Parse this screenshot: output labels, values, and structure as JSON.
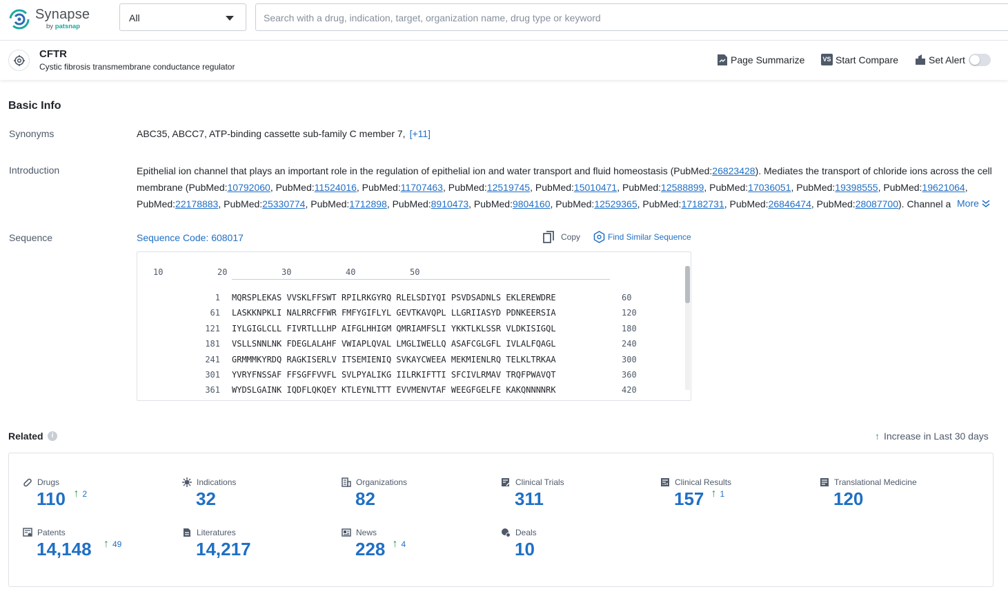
{
  "app": {
    "name": "Synapse",
    "by_prefix": "by",
    "by_brand": "patsnap"
  },
  "search": {
    "scope_value": "All",
    "placeholder": "Search with a drug, indication, target, organization name, drug type or keyword"
  },
  "target": {
    "symbol": "CFTR",
    "full_name": "Cystic fibrosis transmembrane conductance regulator"
  },
  "header_actions": {
    "page_summarize": "Page Summarize",
    "start_compare": "Start Compare",
    "compare_icon_text": "VS",
    "set_alert": "Set Alert"
  },
  "basic_info": {
    "title": "Basic Info",
    "synonyms_label": "Synonyms",
    "synonyms": "ABC35,  ABCC7,  ATP-binding cassette sub-family C member 7,",
    "synonyms_more": "[+11]",
    "introduction_label": "Introduction",
    "intro": {
      "lead": "Epithelial ion channel that plays an important role in the regulation of epithelial ion and water transport and fluid homeostasis (PubMed:",
      "pm1": "26823428",
      "mid": "). Mediates the transport of chloride ions across the cell membrane (PubMed:",
      "pmids": [
        "10792060",
        "11524016",
        "11707463",
        "12519745",
        "15010471",
        "12588899",
        "17036051",
        "19398555",
        "19621064",
        "22178883",
        "25330774",
        "1712898",
        "8910473",
        "9804160",
        "12529365",
        "17182731",
        "26846474",
        "28087700"
      ],
      "pm_prefix": "PubMed:",
      "tail": "). Channel a"
    },
    "more_label": "More",
    "sequence_label": "Sequence",
    "sequence_code": "Sequence Code: 608017",
    "copy_label": "Copy",
    "find_similar_label": "Find Similar Sequence"
  },
  "sequence_viewer": {
    "ruler": [
      "10",
      "20",
      "30",
      "40",
      "50"
    ],
    "lines": [
      {
        "start": "1",
        "seq": "MQRSPLEKAS VVSKLFFSWT RPILRKGYRQ RLELSDIYQI PSVDSADNLS EKLEREWDRE",
        "end": "60"
      },
      {
        "start": "61",
        "seq": "LASKKNPKLI NALRRCFFWR FMFYGIFLYL GEVTKAVQPL LLGRIIASYD PDNKEERSIA",
        "end": "120"
      },
      {
        "start": "121",
        "seq": "IYLGIGLCLL FIVRTLLLHP AIFGLHHIGM QMRIAMFSLI YKKTLKLSSR VLDKISIGQL",
        "end": "180"
      },
      {
        "start": "181",
        "seq": "VSLLSNNLNK FDEGLALAHF VWIAPLQVAL LMGLIWELLQ ASAFCGLGFL IVLALFQAGL",
        "end": "240"
      },
      {
        "start": "241",
        "seq": "GRMMMKYRDQ RAGKISERLV ITSEMIENIQ SVKAYCWEEA MEKMIENLRQ TELKLTRKAA",
        "end": "300"
      },
      {
        "start": "301",
        "seq": "YVRYFNSSAF FFSGFFVVFL SVLPYALIKG IILRKIFTTI SFCIVLRMAV TRQFPWAVQT",
        "end": "360"
      },
      {
        "start": "361",
        "seq": "WYDSLGAINK IQDFLQKQEY KTLEYNLTTT EVVMENVTAF WEEGFGELFE KAKQNNNNRK",
        "end": "420"
      }
    ]
  },
  "related": {
    "title": "Related",
    "legend": "Increase in Last 30 days",
    "items": [
      {
        "label": "Drugs",
        "value": "110",
        "increase": "2",
        "icon": "pill-icon"
      },
      {
        "label": "Indications",
        "value": "32",
        "increase": "",
        "icon": "virus-icon"
      },
      {
        "label": "Organizations",
        "value": "82",
        "increase": "",
        "icon": "building-icon"
      },
      {
        "label": "Clinical Trials",
        "value": "311",
        "increase": "",
        "icon": "clipboard-edit-icon"
      },
      {
        "label": "Clinical Results",
        "value": "157",
        "increase": "1",
        "icon": "clipboard-chart-icon"
      },
      {
        "label": "Translational Medicine",
        "value": "120",
        "increase": "",
        "icon": "document-icon"
      },
      {
        "label": "Patents",
        "value": "14,148",
        "increase": "49",
        "icon": "patent-icon"
      },
      {
        "label": "Literatures",
        "value": "14,217",
        "increase": "",
        "icon": "literature-icon"
      },
      {
        "label": "News",
        "value": "228",
        "increase": "4",
        "icon": "newspaper-icon"
      },
      {
        "label": "Deals",
        "value": "10",
        "increase": "",
        "icon": "deal-icon"
      }
    ]
  },
  "colors": {
    "link": "#1f6fc5",
    "increase_arrow": "#2e9b44",
    "brand_teal": "#1aa8a0"
  }
}
